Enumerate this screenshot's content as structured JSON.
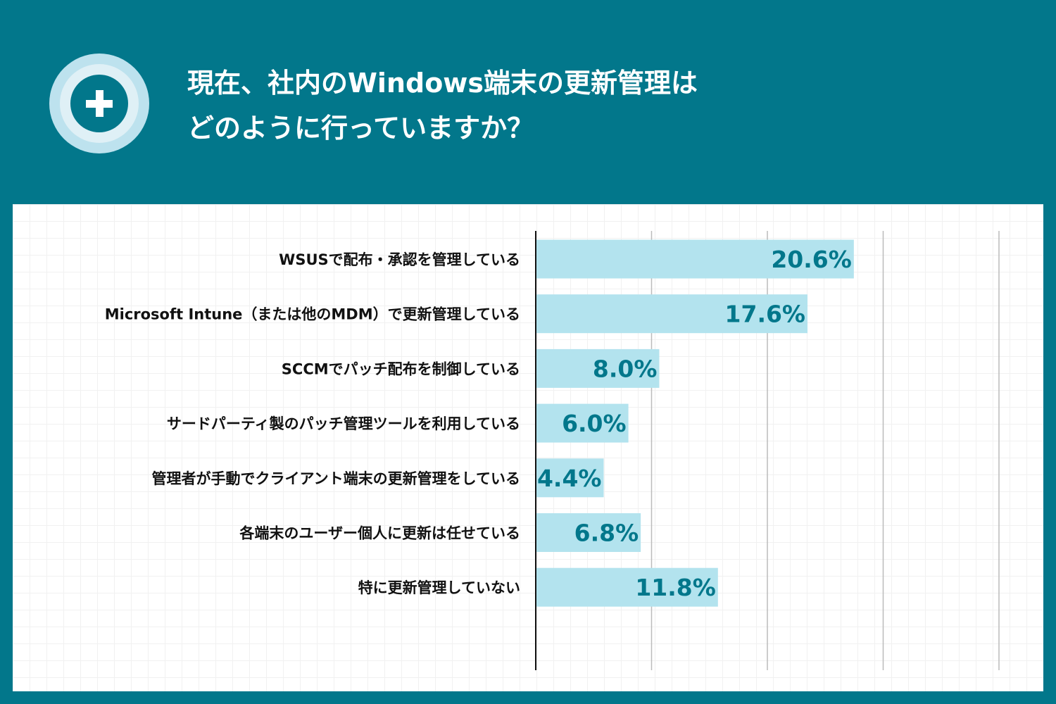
{
  "header": {
    "title_line1": "現在、社内のWindows端末の更新管理は",
    "title_line2": "どのように行っていますか？",
    "icon": "plus-circle-icon"
  },
  "colors": {
    "background": "#02778b",
    "bar": "#b3e3ee",
    "label": "#02778b"
  },
  "chart_data": {
    "type": "bar",
    "orientation": "horizontal",
    "categories": [
      "WSUSで配布・承認を管理している",
      "Microsoft Intune（または他のMDM）で更新管理している",
      "SCCMでパッチ配布を制御している",
      "サードパーティ製のパッチ管理ツールを利用している",
      "管理者が手動でクライアント端末の更新管理をしている",
      "各端末のユーザー個人に更新は任せている",
      "特に更新管理していない"
    ],
    "values": [
      20.6,
      17.6,
      8.0,
      6.0,
      4.4,
      6.8,
      11.8
    ],
    "data_labels": [
      "20.6%",
      "17.6%",
      "8.0%",
      "6.0%",
      "4.4%",
      "6.8%",
      "11.8%"
    ],
    "xlim": [
      0,
      30
    ],
    "gridlines": [
      7.5,
      15,
      22.5,
      30
    ],
    "grid": true,
    "legend": "none"
  }
}
